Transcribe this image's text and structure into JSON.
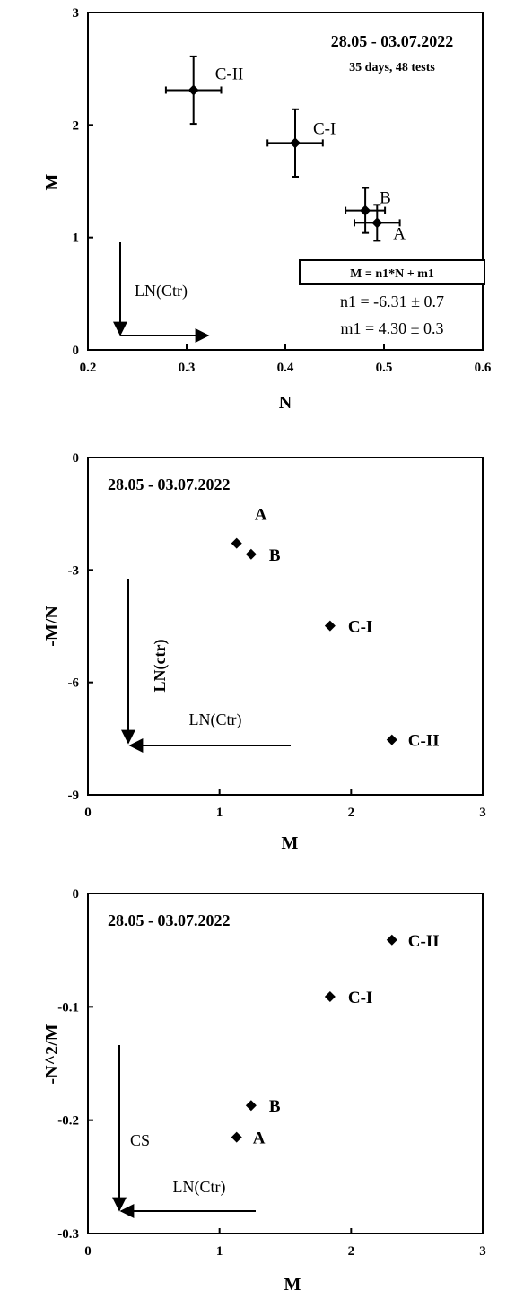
{
  "chart_data": [
    {
      "type": "scatter",
      "xlabel": "N",
      "ylabel": "M",
      "xlim": [
        0.2,
        0.6
      ],
      "ylim": [
        0,
        3
      ],
      "xticks": [
        "0.2",
        "0.3",
        "0.4",
        "0.5",
        "0.6"
      ],
      "yticks": [
        "0",
        "1",
        "2",
        "3"
      ],
      "date_range": "28.05 - 03.07.2022",
      "subtitle": "35 days, 48 tests",
      "equation": "M = n1*N + m1",
      "n1": "n1 = -6.31 ± 0.7",
      "m1": "m1 = 4.30 ± 0.3",
      "arrow_label": "LN(Ctr)",
      "points": [
        {
          "label": "A",
          "x": 0.493,
          "y": 1.13,
          "xerr": 0.023,
          "yerr": 0.16
        },
        {
          "label": "B",
          "x": 0.481,
          "y": 1.24,
          "xerr": 0.02,
          "yerr": 0.2
        },
        {
          "label": "C-I",
          "x": 0.41,
          "y": 1.84,
          "xerr": 0.028,
          "yerr": 0.3
        },
        {
          "label": "C-II",
          "x": 0.307,
          "y": 2.31,
          "xerr": 0.028,
          "yerr": 0.3
        }
      ]
    },
    {
      "type": "scatter",
      "xlabel": "M",
      "ylabel": "-M/N",
      "xlim": [
        0,
        3
      ],
      "ylim": [
        -9,
        0
      ],
      "xticks": [
        "0",
        "1",
        "2",
        "3"
      ],
      "yticks": [
        "0",
        "-3",
        "-6",
        "-9"
      ],
      "date_range": "28.05 - 03.07.2022",
      "arrow_label_vertical": "LN(ctr)",
      "arrow_label_horizontal": "LN(Ctr)",
      "points": [
        {
          "label": "A",
          "x": 1.13,
          "y": -2.29
        },
        {
          "label": "B",
          "x": 1.24,
          "y": -2.58
        },
        {
          "label": "C-I",
          "x": 1.84,
          "y": -4.49
        },
        {
          "label": "C-II",
          "x": 2.31,
          "y": -7.53
        }
      ]
    },
    {
      "type": "scatter",
      "xlabel": "M",
      "ylabel": "-N^2/M",
      "xlim": [
        0,
        3
      ],
      "ylim": [
        -0.3,
        0
      ],
      "xticks": [
        "0",
        "1",
        "2",
        "3"
      ],
      "yticks": [
        "0",
        "-0.1",
        "-0.2",
        "-0.3"
      ],
      "date_range": "28.05 - 03.07.2022",
      "arrow_label_vertical": "CS",
      "arrow_label_horizontal": "LN(Ctr)",
      "points": [
        {
          "label": "A",
          "x": 1.13,
          "y": -0.215
        },
        {
          "label": "B",
          "x": 1.24,
          "y": -0.187
        },
        {
          "label": "C-I",
          "x": 1.84,
          "y": -0.091
        },
        {
          "label": "C-II",
          "x": 2.31,
          "y": -0.041
        }
      ]
    }
  ]
}
